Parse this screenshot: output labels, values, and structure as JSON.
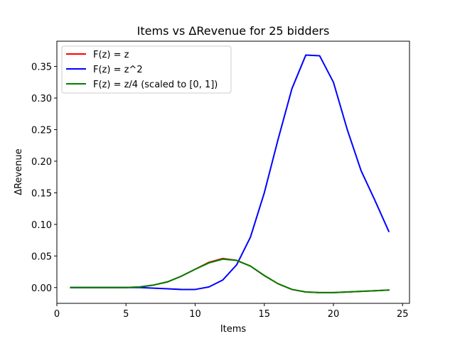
{
  "chart_data": {
    "type": "line",
    "title": "Items vs ΔRevenue for 25 bidders",
    "xlabel": "Items",
    "ylabel": "ΔRevenue",
    "xlim": [
      0.0,
      25.5
    ],
    "ylim": [
      -0.025,
      0.39
    ],
    "xticks": [
      0,
      5,
      10,
      15,
      20,
      25
    ],
    "xtick_labels": [
      "0",
      "5",
      "10",
      "15",
      "20",
      "25"
    ],
    "yticks": [
      0.0,
      0.05,
      0.1,
      0.15,
      0.2,
      0.25,
      0.3,
      0.35
    ],
    "ytick_labels": [
      "0.00",
      "0.05",
      "0.10",
      "0.15",
      "0.20",
      "0.25",
      "0.30",
      "0.35"
    ],
    "grid": false,
    "legend_position": "top-left",
    "x": [
      1,
      2,
      3,
      4,
      5,
      6,
      7,
      8,
      9,
      10,
      11,
      12,
      13,
      14,
      15,
      16,
      17,
      18,
      19,
      20,
      21,
      22,
      23,
      24
    ],
    "series": [
      {
        "name": "F(z) = z",
        "color": "#ff0000",
        "values": [
          0.0,
          0.0,
          0.0,
          0.0,
          0.0,
          0.001,
          0.004,
          0.009,
          0.018,
          0.029,
          0.04,
          0.046,
          0.043,
          0.034,
          0.019,
          0.006,
          -0.003,
          -0.007,
          -0.008,
          -0.008,
          -0.007,
          -0.006,
          -0.005,
          -0.004
        ]
      },
      {
        "name": "F(z) = z^2",
        "color": "#0000ff",
        "values": [
          0.0,
          0.0,
          0.0,
          0.0,
          0.0,
          0.0,
          -0.001,
          -0.002,
          -0.003,
          -0.003,
          0.001,
          0.012,
          0.036,
          0.08,
          0.15,
          0.235,
          0.315,
          0.368,
          0.367,
          0.325,
          0.25,
          0.185,
          0.138,
          0.089
        ]
      },
      {
        "name": "F(z) = z/4 (scaled to [0, 1])",
        "color": "#008000",
        "values": [
          0.0,
          0.0,
          0.0,
          0.0,
          0.0,
          0.001,
          0.004,
          0.009,
          0.018,
          0.029,
          0.039,
          0.045,
          0.043,
          0.034,
          0.019,
          0.006,
          -0.003,
          -0.007,
          -0.008,
          -0.008,
          -0.007,
          -0.006,
          -0.005,
          -0.004
        ]
      }
    ]
  }
}
